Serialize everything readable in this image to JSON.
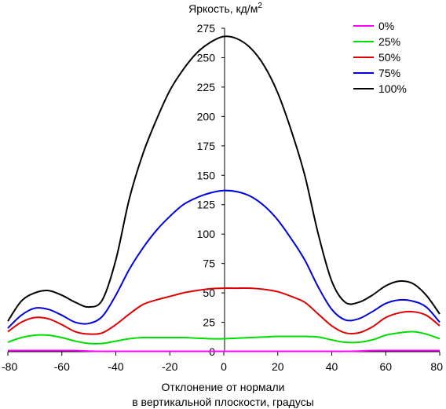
{
  "chart_data": {
    "type": "line",
    "title": "Яркость, кд/м",
    "title_sup": "2",
    "xlabel_line1": "Отклонение от нормали",
    "xlabel_line2": "в вертикальной плоскости, градусы",
    "ylabel": "",
    "xlim": [
      -80,
      80
    ],
    "ylim": [
      0,
      275
    ],
    "xticks": [
      "-80",
      "-60",
      "-40",
      "-20",
      "0",
      "20",
      "40",
      "60",
      "80"
    ],
    "yticks": [
      "0",
      "25",
      "50",
      "75",
      "100",
      "125",
      "150",
      "175",
      "200",
      "225",
      "250",
      "275"
    ],
    "grid": false,
    "legend_position": "top-right",
    "x": [
      -80,
      -75,
      -70,
      -65,
      -60,
      -55,
      -50,
      -45,
      -40,
      -35,
      -30,
      -25,
      -20,
      -15,
      -10,
      -5,
      0,
      5,
      10,
      15,
      20,
      25,
      30,
      35,
      40,
      45,
      50,
      55,
      60,
      65,
      70,
      75,
      80
    ],
    "series": [
      {
        "name": "0%",
        "color": "#ff00ff",
        "values": [
          1,
          1,
          1,
          1,
          1,
          1,
          0.5,
          0.3,
          0.3,
          0.3,
          0.3,
          0.3,
          0.3,
          0.3,
          0.3,
          0.3,
          0.3,
          0.3,
          0.3,
          0.3,
          0.3,
          0.3,
          0.3,
          0.3,
          0.3,
          0.3,
          0.5,
          1,
          1,
          1,
          1,
          1,
          1
        ]
      },
      {
        "name": "25%",
        "color": "#00dd00",
        "values": [
          8,
          12,
          14,
          14,
          12,
          9,
          7,
          7,
          9,
          11,
          12,
          12,
          12,
          12,
          11.5,
          11,
          11,
          11.5,
          12,
          12.5,
          13,
          13,
          13,
          12.5,
          10,
          8,
          8,
          10,
          14,
          16,
          17,
          15,
          11
        ]
      },
      {
        "name": "50%",
        "color": "#dd0000",
        "values": [
          17,
          25,
          29,
          28,
          23,
          17,
          15,
          16,
          23,
          32,
          40,
          44,
          47,
          50,
          52,
          53.5,
          54,
          54,
          54,
          53,
          51,
          47,
          42,
          32,
          22,
          16,
          16,
          21,
          29,
          33,
          34,
          31,
          22
        ]
      },
      {
        "name": "75%",
        "color": "#0000dd",
        "values": [
          20,
          31,
          37,
          36,
          31,
          25,
          24,
          30,
          48,
          70,
          88,
          103,
          115,
          125,
          131,
          135,
          137,
          136,
          132,
          124,
          112,
          96,
          78,
          55,
          36,
          27,
          28,
          34,
          41,
          44,
          43,
          38,
          25
        ]
      },
      {
        "name": "100%",
        "color": "#000000",
        "values": [
          26,
          43,
          50,
          52,
          48,
          42,
          38,
          44,
          78,
          130,
          168,
          197,
          222,
          240,
          254,
          263,
          268,
          266,
          258,
          243,
          220,
          188,
          150,
          100,
          60,
          42,
          42,
          48,
          56,
          60,
          58,
          48,
          32
        ]
      }
    ]
  }
}
